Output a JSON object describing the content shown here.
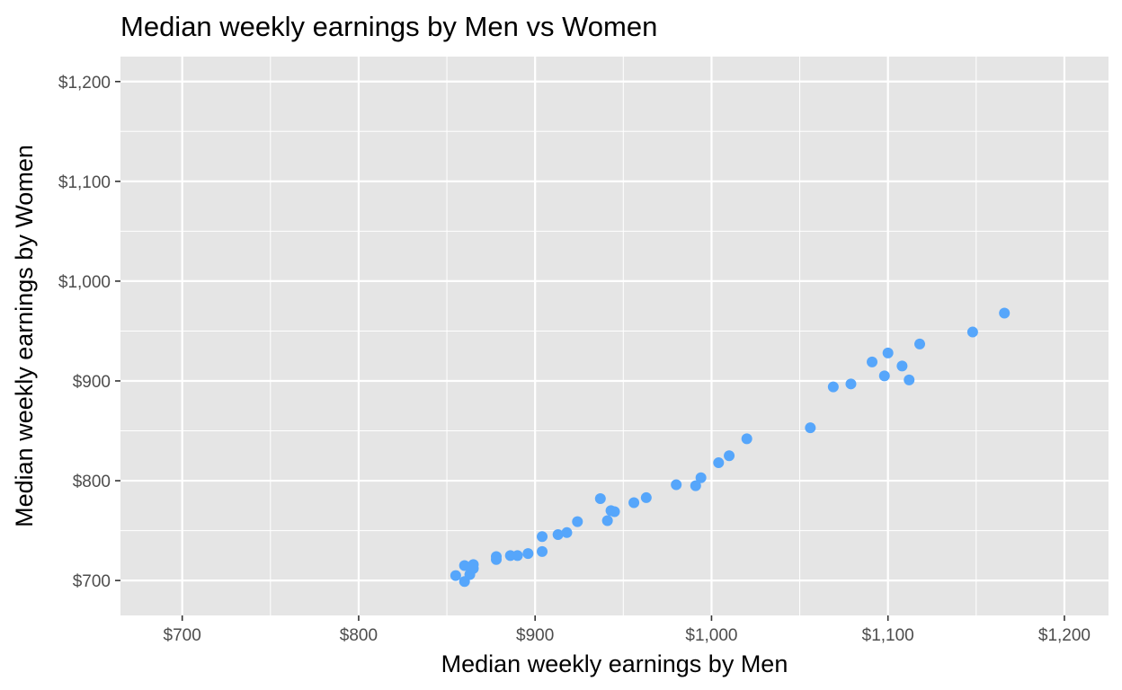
{
  "chart_data": {
    "type": "scatter",
    "title": "Median weekly earnings by Men vs Women",
    "xlabel": "Median weekly earnings by Men",
    "ylabel": "Median weekly earnings by Women",
    "xlim": [
      665,
      1225
    ],
    "ylim": [
      665,
      1225
    ],
    "x_ticks": [
      700,
      800,
      900,
      1000,
      1100,
      1200
    ],
    "x_tick_labels": [
      "$700",
      "$800",
      "$900",
      "$1,000",
      "$1,100",
      "$1,200"
    ],
    "y_ticks": [
      700,
      800,
      900,
      1000,
      1100,
      1200
    ],
    "y_tick_labels": [
      "$700",
      "$800",
      "$900",
      "$1,000",
      "$1,100",
      "$1,200"
    ],
    "grid": true,
    "legend": "none",
    "colors": {
      "point": "#56a6fb",
      "panel": "#e5e5e5",
      "grid": "#ffffff",
      "tick_text": "#4d4d4d",
      "tick_mark": "#333333"
    },
    "points": [
      {
        "x": 855,
        "y": 705
      },
      {
        "x": 860,
        "y": 715
      },
      {
        "x": 860,
        "y": 699
      },
      {
        "x": 863,
        "y": 706
      },
      {
        "x": 865,
        "y": 712
      },
      {
        "x": 865,
        "y": 716
      },
      {
        "x": 878,
        "y": 721
      },
      {
        "x": 878,
        "y": 724
      },
      {
        "x": 886,
        "y": 725
      },
      {
        "x": 890,
        "y": 725
      },
      {
        "x": 896,
        "y": 727
      },
      {
        "x": 904,
        "y": 729
      },
      {
        "x": 904,
        "y": 744
      },
      {
        "x": 913,
        "y": 746
      },
      {
        "x": 918,
        "y": 748
      },
      {
        "x": 924,
        "y": 759
      },
      {
        "x": 937,
        "y": 782
      },
      {
        "x": 941,
        "y": 760
      },
      {
        "x": 943,
        "y": 770
      },
      {
        "x": 945,
        "y": 769
      },
      {
        "x": 956,
        "y": 778
      },
      {
        "x": 963,
        "y": 783
      },
      {
        "x": 980,
        "y": 796
      },
      {
        "x": 991,
        "y": 795
      },
      {
        "x": 994,
        "y": 803
      },
      {
        "x": 1004,
        "y": 818
      },
      {
        "x": 1010,
        "y": 825
      },
      {
        "x": 1020,
        "y": 842
      },
      {
        "x": 1056,
        "y": 853
      },
      {
        "x": 1069,
        "y": 894
      },
      {
        "x": 1079,
        "y": 897
      },
      {
        "x": 1091,
        "y": 919
      },
      {
        "x": 1098,
        "y": 905
      },
      {
        "x": 1100,
        "y": 928
      },
      {
        "x": 1108,
        "y": 915
      },
      {
        "x": 1112,
        "y": 901
      },
      {
        "x": 1118,
        "y": 937
      },
      {
        "x": 1148,
        "y": 949
      },
      {
        "x": 1166,
        "y": 968
      }
    ]
  }
}
